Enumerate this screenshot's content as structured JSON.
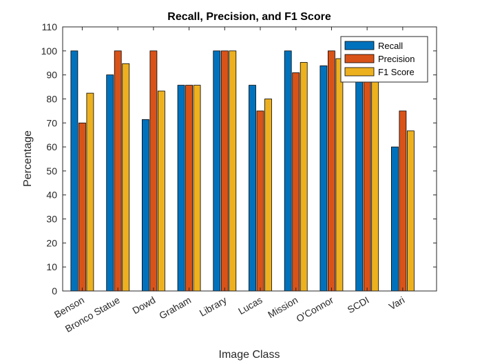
{
  "chart_data": {
    "type": "bar",
    "title": "Recall, Precision, and F1 Score",
    "xlabel": "Image Class",
    "ylabel": "Percentage",
    "ylim": [
      0,
      110
    ],
    "yticks": [
      0,
      10,
      20,
      30,
      40,
      50,
      60,
      70,
      80,
      90,
      100,
      110
    ],
    "grid": false,
    "legend_position": "top-right",
    "categories": [
      "Benson",
      "Bronco Statue",
      "Dowd",
      "Graham",
      "Library",
      "Lucas",
      "Mission",
      "O'Connor",
      "SCDI",
      "Vari"
    ],
    "series": [
      {
        "name": "Recall",
        "color": "#0072BD",
        "values": [
          100,
          90,
          71.4,
          85.7,
          100,
          85.7,
          100,
          93.8,
          88.9,
          60
        ]
      },
      {
        "name": "Precision",
        "color": "#D95319",
        "values": [
          70,
          100,
          100,
          85.7,
          100,
          75,
          90.9,
          100,
          88.9,
          75
        ]
      },
      {
        "name": "F1 Score",
        "color": "#EDB120",
        "values": [
          82.4,
          94.7,
          83.3,
          85.7,
          100,
          80,
          95.2,
          96.8,
          88.9,
          66.7
        ]
      }
    ]
  }
}
